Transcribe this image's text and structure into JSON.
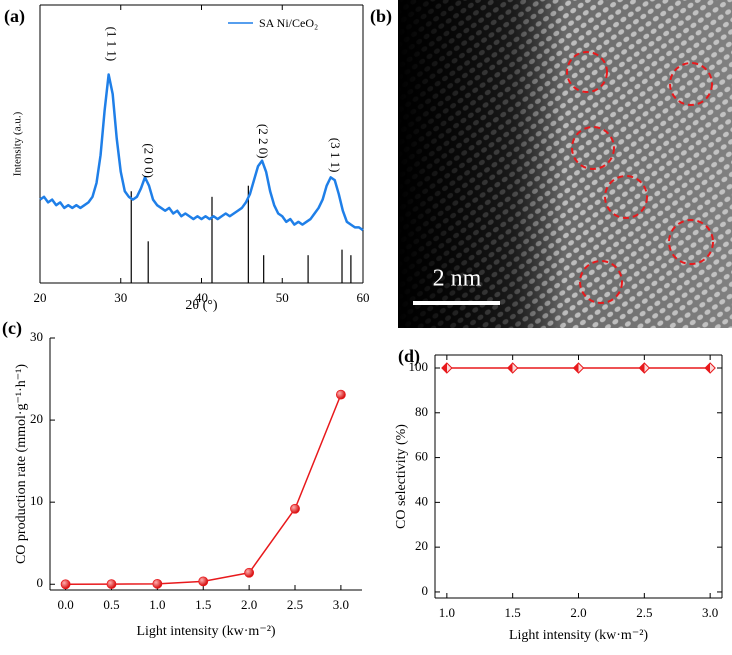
{
  "chart_data": [
    {
      "type": "line",
      "panel_label": "(a)",
      "x_label": "2θ (°)",
      "y_label": "Intensity (a.u.)",
      "xlim": [
        20,
        60
      ],
      "xticks": [
        20,
        30,
        40,
        50,
        60
      ],
      "ylim": [
        0,
        100
      ],
      "series": [
        {
          "name": "SA Ni/CeO₂",
          "color": "#1f7fe8",
          "x": [
            20,
            20.5,
            21,
            21.5,
            22,
            22.5,
            23,
            23.5,
            24,
            24.5,
            25,
            25.5,
            26,
            26.5,
            27,
            27.5,
            28,
            28.5,
            29,
            29.5,
            30,
            30.5,
            31,
            31.5,
            32,
            32.5,
            33,
            33.5,
            34,
            34.5,
            35,
            35.5,
            36,
            36.5,
            37,
            37.5,
            38,
            38.5,
            39,
            39.5,
            40,
            40.5,
            41,
            41.5,
            42,
            42.5,
            43,
            43.5,
            44,
            44.5,
            45,
            45.5,
            46,
            46.5,
            47,
            47.5,
            48,
            48.5,
            49,
            49.5,
            50,
            50.5,
            51,
            51.5,
            52,
            52.5,
            53,
            53.5,
            54,
            54.5,
            55,
            55.5,
            56,
            56.5,
            57,
            57.5,
            58,
            58.5,
            59,
            59.5,
            60
          ],
          "values": [
            30,
            31,
            29,
            30,
            28,
            29,
            27,
            28,
            27,
            28,
            27,
            28,
            29,
            31,
            36,
            46,
            62,
            75,
            68,
            52,
            40,
            33,
            31,
            30,
            31,
            34,
            38,
            35,
            30,
            28,
            27,
            26,
            27,
            25,
            26,
            24,
            25,
            24,
            23,
            24,
            23,
            24,
            23,
            24,
            23,
            24,
            25,
            24,
            25,
            26,
            27,
            29,
            32,
            37,
            42,
            44,
            40,
            33,
            28,
            25,
            24,
            22,
            23,
            21,
            22,
            21,
            22,
            23,
            25,
            27,
            30,
            35,
            38,
            37,
            32,
            26,
            22,
            21,
            20,
            20,
            19
          ]
        }
      ],
      "reference_lines": {
        "x": [
          31.3,
          33.4,
          41.3,
          45.8,
          47.7,
          53.2,
          57.4,
          58.5
        ],
        "heights": [
          33,
          15,
          31,
          35,
          10,
          10,
          12,
          10
        ]
      },
      "annotations": [
        {
          "text": "(1 1 1)",
          "x": 28.7,
          "y": 86
        },
        {
          "text": "(2 0 0)",
          "x": 33.3,
          "y": 44
        },
        {
          "text": "(2 2 0)",
          "x": 47.5,
          "y": 51
        },
        {
          "text": "(3 1 1)",
          "x": 56.4,
          "y": 46
        }
      ]
    },
    {
      "type": "line",
      "panel_label": "(c)",
      "x_label": "Light intensity (kw·m⁻²)",
      "y_label": "CO production rate (mmol·g⁻¹·h⁻¹)",
      "xlim": [
        -0.17,
        3.23
      ],
      "xticks": [
        {
          "value": 0,
          "label": "0.0"
        },
        0.5,
        {
          "value": 1,
          "label": "1.0"
        },
        1.5,
        {
          "value": 2,
          "label": "2.0"
        },
        2.5,
        {
          "value": 3,
          "label": "3.0"
        }
      ],
      "ylim": [
        -0.7,
        30
      ],
      "yticks": [
        0,
        10,
        20,
        30
      ],
      "series": [
        {
          "color": "#e8191c",
          "marker": "circle",
          "x": [
            0,
            0.5,
            1,
            1.5,
            2,
            2.5,
            3
          ],
          "values": [
            0,
            0.02,
            0.05,
            0.35,
            1.4,
            9.2,
            23.1
          ]
        }
      ]
    },
    {
      "type": "line",
      "panel_label": "(d)",
      "x_label": "Light intensity (kw·m⁻²)",
      "y_label": "CO selectivity (%)",
      "xlim": [
        0.91,
        3.09
      ],
      "xticks": [
        {
          "value": 1,
          "label": "1.0"
        },
        1.5,
        {
          "value": 2,
          "label": "2.0"
        },
        2.5,
        {
          "value": 3,
          "label": "3.0"
        }
      ],
      "ylim": [
        -2.7,
        105.8
      ],
      "yticks": [
        0,
        20,
        40,
        60,
        80,
        100
      ],
      "series": [
        {
          "color": "#e8191c",
          "marker": "diamond",
          "x": [
            1,
            1.5,
            2,
            2.5,
            3
          ],
          "values": [
            100,
            100,
            100,
            100,
            100
          ]
        }
      ]
    }
  ],
  "image": {
    "panel_label": "(b)",
    "scale_bar": "2 nm"
  }
}
